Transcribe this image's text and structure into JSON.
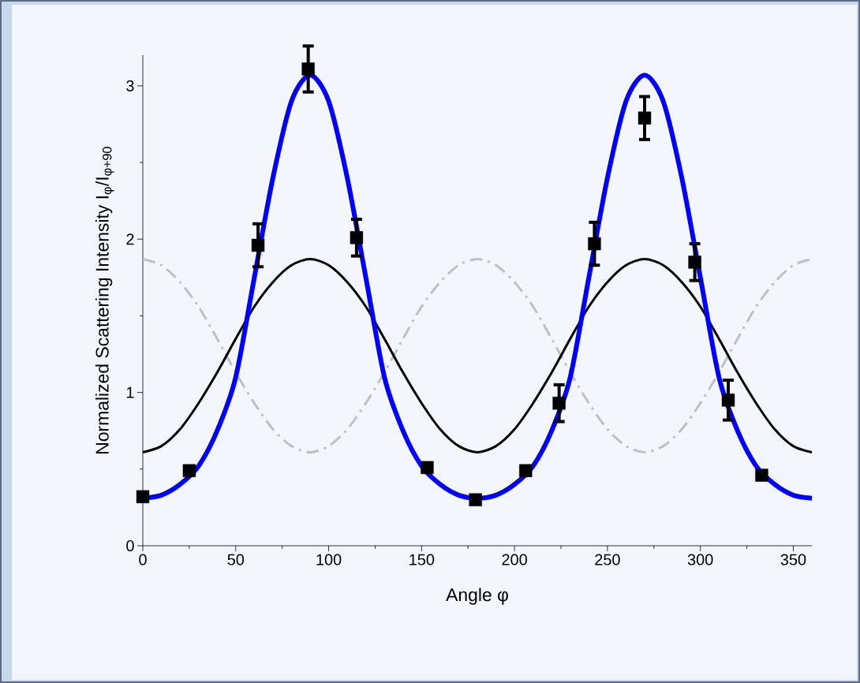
{
  "chart_data": {
    "type": "scatter",
    "xlabel": "Angle φ",
    "ylabel": "Normalized Scattering Intensity I$_{φ}$/I$_{φ+90}$",
    "xlim": [
      0,
      360
    ],
    "ylim": [
      0,
      3.2
    ],
    "xticks": [
      0,
      50,
      100,
      150,
      200,
      250,
      300,
      350
    ],
    "yticks": [
      0,
      1,
      2,
      3
    ],
    "series": [
      {
        "type": "line",
        "color": "#c0c0c0",
        "line_style": "dashdot",
        "x": [
          0,
          10,
          20,
          30,
          40,
          50,
          60,
          70,
          80,
          90,
          100,
          110,
          120,
          130,
          140,
          150,
          160,
          170,
          180,
          190,
          200,
          210,
          220,
          230,
          240,
          250,
          260,
          270,
          280,
          290,
          300,
          310,
          320,
          330,
          340,
          350,
          360
        ],
        "values": [
          1.87,
          1.83,
          1.72,
          1.56,
          1.35,
          1.13,
          0.93,
          0.76,
          0.65,
          0.61,
          0.65,
          0.76,
          0.93,
          1.13,
          1.35,
          1.56,
          1.72,
          1.83,
          1.87,
          1.83,
          1.72,
          1.56,
          1.35,
          1.13,
          0.93,
          0.76,
          0.65,
          0.61,
          0.65,
          0.76,
          0.93,
          1.13,
          1.35,
          1.56,
          1.72,
          1.83,
          1.87
        ]
      },
      {
        "type": "line",
        "color": "#000000",
        "line_style": "solid",
        "x": [
          0,
          10,
          20,
          30,
          40,
          50,
          60,
          70,
          80,
          90,
          100,
          110,
          120,
          130,
          140,
          150,
          160,
          170,
          180,
          190,
          200,
          210,
          220,
          230,
          240,
          250,
          260,
          270,
          280,
          290,
          300,
          310,
          320,
          330,
          340,
          350,
          360
        ],
        "values": [
          0.61,
          0.65,
          0.76,
          0.93,
          1.13,
          1.35,
          1.56,
          1.72,
          1.83,
          1.87,
          1.83,
          1.72,
          1.56,
          1.35,
          1.13,
          0.93,
          0.76,
          0.65,
          0.61,
          0.65,
          0.76,
          0.93,
          1.13,
          1.35,
          1.56,
          1.72,
          1.83,
          1.87,
          1.83,
          1.72,
          1.56,
          1.35,
          1.13,
          0.93,
          0.76,
          0.65,
          0.61
        ]
      },
      {
        "type": "line",
        "color": "#0000ff",
        "line_style": "solid",
        "x": [
          0,
          10,
          20,
          30,
          40,
          50,
          60,
          70,
          80,
          90,
          100,
          110,
          120,
          130,
          140,
          150,
          160,
          170,
          180,
          190,
          200,
          210,
          220,
          230,
          240,
          250,
          260,
          270,
          280,
          290,
          300,
          310,
          320,
          330,
          340,
          350,
          360
        ],
        "values": [
          0.31,
          0.33,
          0.4,
          0.52,
          0.75,
          1.1,
          1.75,
          2.4,
          2.9,
          3.07,
          2.9,
          2.4,
          1.75,
          1.1,
          0.75,
          0.52,
          0.4,
          0.33,
          0.31,
          0.33,
          0.4,
          0.52,
          0.75,
          1.1,
          1.75,
          2.4,
          2.9,
          3.07,
          2.9,
          2.4,
          1.75,
          1.1,
          0.75,
          0.52,
          0.4,
          0.33,
          0.31
        ]
      },
      {
        "color": "#000000",
        "marker": "square",
        "x": [
          0,
          25,
          62,
          89,
          115,
          153,
          179,
          206,
          224,
          243,
          270,
          297,
          315,
          333
        ],
        "values": [
          0.32,
          0.49,
          1.96,
          3.11,
          2.01,
          0.51,
          0.3,
          0.49,
          0.93,
          1.97,
          2.79,
          1.85,
          0.95,
          0.46
        ],
        "errors": [
          null,
          null,
          0.14,
          0.15,
          0.12,
          null,
          null,
          null,
          0.12,
          0.14,
          0.14,
          0.12,
          0.13,
          null
        ]
      }
    ]
  }
}
